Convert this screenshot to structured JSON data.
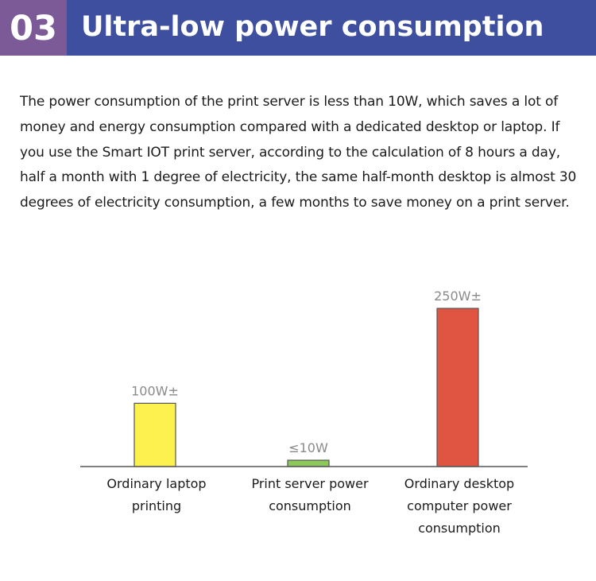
{
  "header": {
    "number": "03",
    "title": "Ultra-low power consumption"
  },
  "description": "The power consumption of the print server is less than 10W, which saves a lot of money and energy consumption compared with a dedicated desktop or laptop. If you use the Smart IOT print server, according to the calculation of 8 hours a day, half a month with 1 degree of electricity, the same half-month desktop is almost 30 degrees of electricity consumption, a few months to save money on a print server.",
  "chart_data": {
    "type": "bar",
    "categories": [
      [
        "Ordinary laptop",
        "printing"
      ],
      [
        "Print server power",
        "consumption"
      ],
      [
        "Ordinary desktop",
        "computer power",
        "consumption"
      ]
    ],
    "values": [
      100,
      10,
      250
    ],
    "data_labels": [
      "100W±",
      "≤10W",
      "250W±"
    ],
    "colors": [
      "#fdf14f",
      "#8cc95a",
      "#df5541"
    ],
    "ylim": [
      0,
      250
    ],
    "grid": false,
    "title": "",
    "xlabel": "",
    "ylabel": ""
  }
}
